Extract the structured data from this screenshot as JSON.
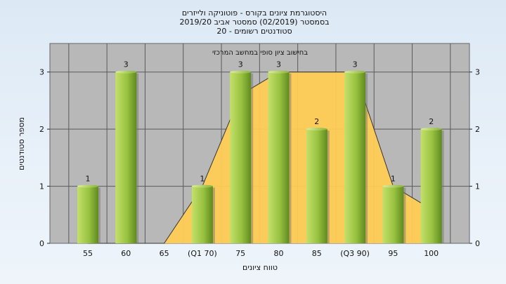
{
  "header": {
    "line1": "היסטוגרמת ציונים בקורס - פוטוניקה ולייזרים",
    "line2": "בסמסטר  (02/2019)  סמסטר אביב 2019/20",
    "line3": "סטודנטים רשומים - 20"
  },
  "chart_data": {
    "type": "bar",
    "xlabel": "טווח ציונים",
    "ylabel": "מספר סטודנטים",
    "ylim": [
      0,
      3.5
    ],
    "yticks": [
      0,
      1,
      2,
      3
    ],
    "grid": true,
    "categories": [
      "55",
      "60",
      "65",
      "(Q1 70)",
      "75",
      "80",
      "85",
      "(Q3 90)",
      "95",
      "100"
    ],
    "values": [
      1,
      3,
      0,
      1,
      3,
      3,
      2,
      3,
      1,
      2
    ],
    "data_labels": [
      "1",
      "3",
      "",
      "1",
      "3",
      "3",
      "2",
      "3",
      "1",
      "2"
    ],
    "area_label": "בחישוב ציון סופי במחשב המרכזי",
    "area_series_values": [
      0,
      0,
      0,
      1,
      2.6,
      3,
      3,
      3,
      1,
      0.6
    ],
    "colors": {
      "plot_bg": "#b8b8b8",
      "bar_light": "#c4e06a",
      "bar_dark": "#5f8a1e",
      "area_fill": "#ffcc55",
      "grid": "#5a5a5a"
    }
  }
}
